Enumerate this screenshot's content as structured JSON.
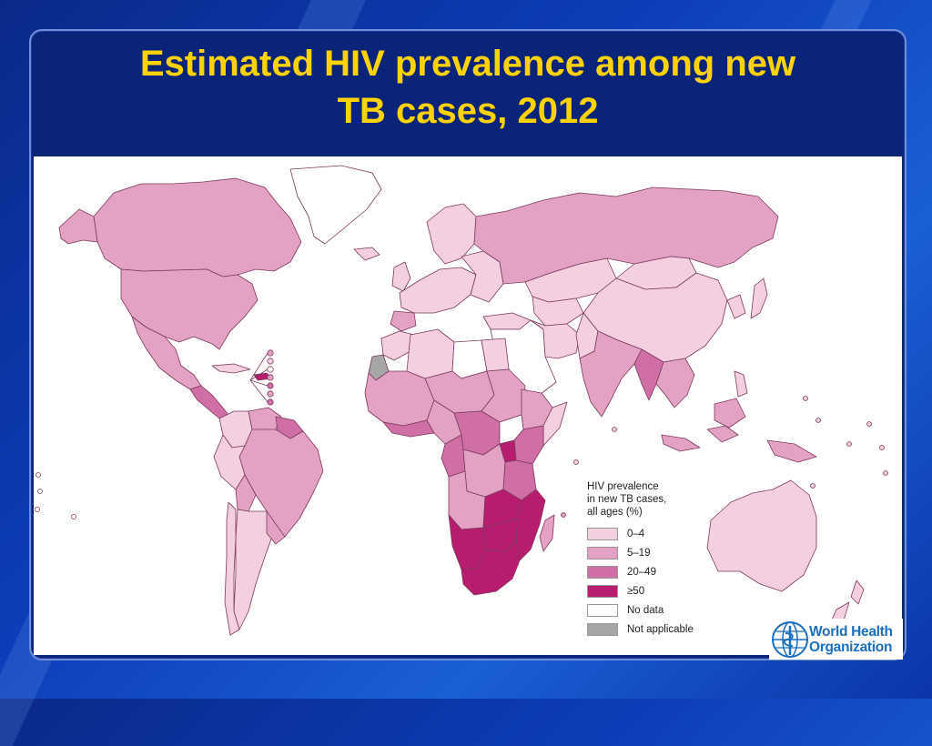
{
  "slide": {
    "title_line1": "Estimated HIV prevalence among new",
    "title_line2": "TB cases, 2012"
  },
  "legend": {
    "title_lines": [
      "HIV prevalence",
      "in new TB cases,",
      "all ages (%)"
    ],
    "items": [
      {
        "label": "0–4",
        "color": "#f4cfe0"
      },
      {
        "label": "5–19",
        "color": "#e3a2c4"
      },
      {
        "label": "20–49",
        "color": "#d06fa6"
      },
      {
        "label": "≥50",
        "color": "#b81c6e"
      },
      {
        "label": "No data",
        "color": "#ffffff"
      },
      {
        "label": "Not applicable",
        "color": "#a6a6a6"
      }
    ]
  },
  "logo": {
    "line1": "World Health",
    "line2": "Organization",
    "color": "#1a6fc2"
  },
  "colors": {
    "title": "#ffd200",
    "background": "#0d3db8",
    "panel": "#0a2479",
    "border": "#7b3a5c"
  }
}
